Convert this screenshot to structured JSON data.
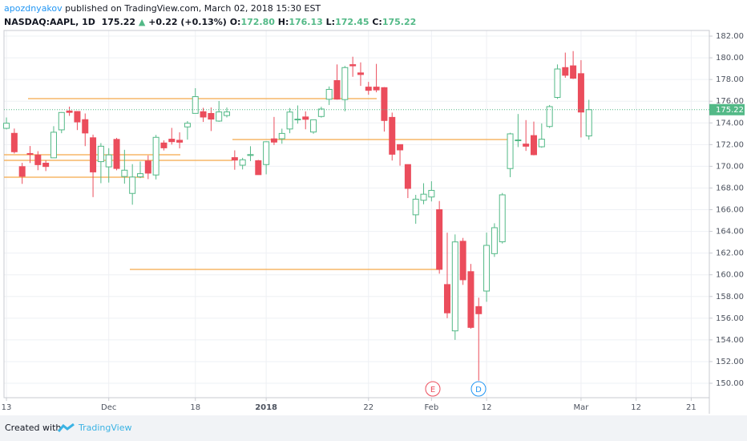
{
  "header": {
    "author": "apozdnyakov",
    "published": "published on TradingView.com, March 02, 2018 15:30 EST",
    "symbol": "NASDAQ:AAPL, 1D",
    "last": "175.22",
    "arrow": "▲",
    "change": "+0.22 (+0.13%)",
    "o_label": "O:",
    "o": "172.80",
    "h_label": "H:",
    "h": "176.13",
    "l_label": "L:",
    "l": "172.45",
    "c_label": "C:",
    "c": "175.22"
  },
  "chart_data": {
    "type": "candlestick",
    "open": [
      173.5,
      173.04,
      169.97,
      171.18,
      171.04,
      170.29,
      170.78,
      173.36,
      175.1,
      175.05,
      174.3,
      172.63,
      170.43,
      169.95,
      172.48,
      169.06,
      167.5,
      169.03,
      170.49,
      169.2,
      172.15,
      172.5,
      172.4,
      173.63,
      174.88,
      175.03,
      174.87,
      174.17,
      174.68,
      170.8,
      170.1,
      171,
      170.52,
      170.16,
      172.53,
      172.54,
      173.44,
      174.35,
      174.55,
      173.16,
      174.59,
      176.18,
      177.9,
      176.15,
      179.37,
      178.61,
      177.3,
      177.3,
      177.25,
      174.51,
      172,
      170.16,
      165.53,
      166.87,
      167.17,
      166,
      159.1,
      154.83,
      163.09,
      160.29,
      157.07,
      158.5,
      161.95,
      163.04,
      169.79,
      172.36,
      172.05,
      172.83,
      171.8,
      173.67,
      176.35,
      179.1,
      179.26,
      178.54,
      172.8
    ],
    "high": [
      174.5,
      173.48,
      170.32,
      171.87,
      171.39,
      170.56,
      173.7,
      175,
      175.5,
      175.08,
      174.87,
      172.92,
      172.14,
      171.67,
      172.62,
      171.52,
      170.2,
      170.44,
      171,
      172.89,
      172.39,
      173.54,
      173.13,
      174.17,
      177.2,
      175.39,
      175.42,
      176.02,
      175.42,
      171.47,
      170.78,
      171.85,
      170.59,
      172.3,
      174.55,
      173.47,
      175.37,
      175.61,
      175.06,
      174.3,
      175.49,
      177.36,
      179.39,
      179.25,
      180.1,
      179.58,
      177.78,
      179.44,
      177.3,
      174.95,
      172,
      170.16,
      167.37,
      168.44,
      168.62,
      166.8,
      163.88,
      163.72,
      163.4,
      161,
      157.89,
      163.89,
      164.75,
      167.54,
      173.09,
      174.82,
      174.26,
      174.12,
      173.95,
      175.65,
      179.39,
      180.48,
      180.62,
      179.78,
      176.13
    ],
    "low": [
      173.4,
      171.18,
      168.38,
      170.3,
      169.64,
      169.56,
      170.78,
      173.05,
      174.65,
      173.34,
      171.86,
      167.16,
      168.44,
      168.5,
      169.63,
      168.4,
      166.46,
      168.91,
      168.82,
      168.79,
      171.46,
      172,
      171.65,
      172.46,
      174.86,
      174.09,
      173.25,
      174.1,
      174.5,
      169.68,
      169.71,
      170.48,
      169.22,
      169.26,
      171.96,
      172.08,
      173.05,
      173.93,
      173.41,
      173,
      174.49,
      175.65,
      176.14,
      175.07,
      178.25,
      177.41,
      176.6,
      176.82,
      173.2,
      170.53,
      170.06,
      167.07,
      164.7,
      166.5,
      166.76,
      160.1,
      156,
      154,
      159.07,
      155.03,
      150.24,
      157.51,
      161.65,
      162.88,
      169,
      171.77,
      171.42,
      171.01,
      171.71,
      173.54,
      176.21,
      178.16,
      178.05,
      172.66,
      172.45
    ],
    "close": [
      173.97,
      171.34,
      169.08,
      171.1,
      170.15,
      169.98,
      173.14,
      174.96,
      174.97,
      174.09,
      173.07,
      169.48,
      171.85,
      171.05,
      169.8,
      169.64,
      169.01,
      169.32,
      169.37,
      172.67,
      171.7,
      172.27,
      172.22,
      173.97,
      176.42,
      174.54,
      174.35,
      175.01,
      175.01,
      170.57,
      170.6,
      171.08,
      169.23,
      172.26,
      172.23,
      173.03,
      175,
      174.35,
      174.33,
      174.29,
      175.28,
      177.09,
      176.19,
      179.1,
      179.26,
      178.46,
      177,
      177.04,
      174.22,
      171.11,
      171.51,
      167.96,
      166.97,
      167.43,
      167.78,
      160.5,
      156.49,
      163.03,
      159.54,
      155.15,
      156.41,
      162.71,
      164.34,
      167.37,
      172.99,
      172.43,
      171.85,
      171.07,
      172.5,
      175.5,
      178.97,
      178.39,
      178.12,
      175,
      175.22
    ],
    "up_color": "#53b987",
    "down_color": "#eb4d5c",
    "grid": true,
    "xlim": [
      -0.31,
      89.3
    ],
    "xticks": [
      {
        "value": 0,
        "label": "13"
      },
      {
        "value": 13,
        "label": "Dec"
      },
      {
        "value": 24,
        "label": "18"
      },
      {
        "value": 33,
        "label": "2018"
      },
      {
        "value": 46,
        "label": "22"
      },
      {
        "value": 54,
        "label": "Feb"
      },
      {
        "value": 61,
        "label": "12"
      },
      {
        "value": 73,
        "label": "Mar"
      },
      {
        "value": 80,
        "label": "12"
      },
      {
        "value": 87,
        "label": "21"
      }
    ],
    "ylim": [
      148.67,
      182.52
    ],
    "yticks": [
      {
        "value": 150,
        "label": "150.00"
      },
      {
        "value": 152,
        "label": "152.00"
      },
      {
        "value": 154,
        "label": "154.00"
      },
      {
        "value": 156,
        "label": "156.00"
      },
      {
        "value": 158,
        "label": "158.00"
      },
      {
        "value": 160,
        "label": "160.00"
      },
      {
        "value": 162,
        "label": "162.00"
      },
      {
        "value": 164,
        "label": "164.00"
      },
      {
        "value": 166,
        "label": "166.00"
      },
      {
        "value": 168,
        "label": "168.00"
      },
      {
        "value": 170,
        "label": "170.00"
      },
      {
        "value": 172,
        "label": "172.00"
      },
      {
        "value": 174,
        "label": "174.00"
      },
      {
        "value": 176,
        "label": "176.00"
      },
      {
        "value": 178,
        "label": "178.00"
      },
      {
        "value": 180,
        "label": "180.00"
      },
      {
        "value": 182,
        "label": "182.00"
      }
    ],
    "events": [
      {
        "label": "E"
      },
      {
        "label": "D"
      }
    ]
  },
  "footer": {
    "created": "Created with",
    "brand": "TradingView"
  }
}
